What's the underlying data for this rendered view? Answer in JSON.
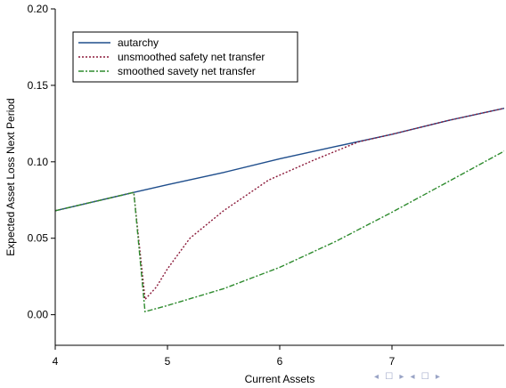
{
  "chart_data": {
    "type": "line",
    "title": "",
    "xlabel": "Current Assets",
    "ylabel": "Expected Asset Loss Next Period",
    "xlim": [
      4,
      8
    ],
    "ylim": [
      -0.02,
      0.2
    ],
    "xticks": [
      4,
      5,
      6,
      7
    ],
    "xtick_labels": [
      "4",
      "5",
      "6",
      "7"
    ],
    "yticks": [
      0.0,
      0.05,
      0.1,
      0.15,
      0.2
    ],
    "ytick_labels": [
      "0.00",
      "0.05",
      "0.10",
      "0.15",
      "0.20"
    ],
    "grid": false,
    "legend_position": "top-left",
    "series": [
      {
        "name": "autarchy",
        "color": "#1f4e8c",
        "dash": "solid",
        "x": [
          4.0,
          4.7,
          5.0,
          5.5,
          6.0,
          6.5,
          7.0,
          7.5,
          8.0
        ],
        "y": [
          0.068,
          0.08,
          0.085,
          0.093,
          0.102,
          0.11,
          0.118,
          0.127,
          0.135
        ]
      },
      {
        "name": "unsmoothed safety net transfer",
        "color": "#8b1a3a",
        "dash": "dotted",
        "x": [
          4.0,
          4.7,
          4.8,
          4.9,
          5.0,
          5.2,
          5.5,
          5.9,
          6.3,
          6.7,
          7.0,
          7.5,
          8.0
        ],
        "y": [
          0.068,
          0.08,
          0.01,
          0.018,
          0.03,
          0.05,
          0.068,
          0.088,
          0.101,
          0.113,
          0.118,
          0.127,
          0.135
        ]
      },
      {
        "name": "smoothed savety net transfer",
        "color": "#2e8b2e",
        "dash": "dashdot",
        "x": [
          4.0,
          4.7,
          4.8,
          5.0,
          5.5,
          6.0,
          6.5,
          7.0,
          7.5,
          8.0
        ],
        "y": [
          0.068,
          0.08,
          0.002,
          0.006,
          0.017,
          0.031,
          0.048,
          0.067,
          0.087,
          0.107
        ]
      }
    ]
  },
  "nav": {
    "glyphs": "◂ ☐ ▸ ◂ ☐ ▸"
  }
}
